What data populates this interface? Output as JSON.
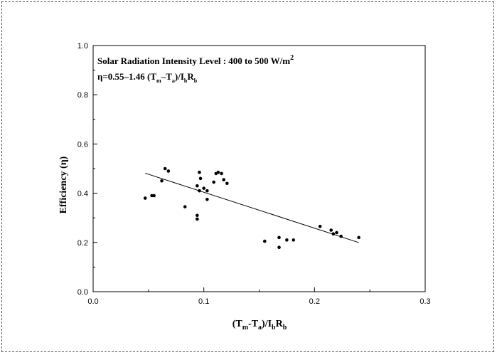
{
  "chart_data": {
    "type": "scatter",
    "title": "",
    "x_range": [
      0.0,
      0.3
    ],
    "y_range": [
      0.0,
      1.0
    ],
    "x_ticks": [
      "0.0",
      "0.1",
      "0.2",
      "0.3"
    ],
    "y_ticks": [
      "0.0",
      "0.2",
      "0.4",
      "0.6",
      "0.8",
      "1.0"
    ],
    "x_tick_values": [
      0.0,
      0.1,
      0.2,
      0.3
    ],
    "y_tick_values": [
      0.0,
      0.2,
      0.4,
      0.6,
      0.8,
      1.0
    ],
    "xlabel": {
      "base": "(T",
      "sub1": "m",
      "mid1": "-T",
      "sub2": "a",
      "mid2": ")/I",
      "sub3": "b",
      "mid3": "R",
      "sub4": "b"
    },
    "ylabel": "Efficiency (η)",
    "annotation": {
      "line1": "Solar Radiation Intensity Level  : 400 to 500 W/m",
      "line1_sup": "2",
      "line2_eq": "η=0.55–1.46 (T",
      "line2_sub1": "m",
      "line2_mid1": "–T",
      "line2_sub2": "a",
      "line2_mid2": ")/I",
      "line2_sub3": "b",
      "line2_mid3": "R",
      "line2_sub4": "b"
    },
    "grid": false,
    "points": [
      {
        "x": 0.047,
        "y": 0.38
      },
      {
        "x": 0.053,
        "y": 0.39
      },
      {
        "x": 0.055,
        "y": 0.39
      },
      {
        "x": 0.062,
        "y": 0.45
      },
      {
        "x": 0.065,
        "y": 0.5
      },
      {
        "x": 0.068,
        "y": 0.49
      },
      {
        "x": 0.083,
        "y": 0.345
      },
      {
        "x": 0.094,
        "y": 0.31
      },
      {
        "x": 0.094,
        "y": 0.295
      },
      {
        "x": 0.094,
        "y": 0.43
      },
      {
        "x": 0.096,
        "y": 0.485
      },
      {
        "x": 0.097,
        "y": 0.46
      },
      {
        "x": 0.096,
        "y": 0.41
      },
      {
        "x": 0.1,
        "y": 0.42
      },
      {
        "x": 0.103,
        "y": 0.41
      },
      {
        "x": 0.103,
        "y": 0.375
      },
      {
        "x": 0.109,
        "y": 0.445
      },
      {
        "x": 0.111,
        "y": 0.48
      },
      {
        "x": 0.113,
        "y": 0.485
      },
      {
        "x": 0.116,
        "y": 0.48
      },
      {
        "x": 0.118,
        "y": 0.455
      },
      {
        "x": 0.121,
        "y": 0.44
      },
      {
        "x": 0.155,
        "y": 0.205
      },
      {
        "x": 0.168,
        "y": 0.22
      },
      {
        "x": 0.168,
        "y": 0.18
      },
      {
        "x": 0.175,
        "y": 0.21
      },
      {
        "x": 0.181,
        "y": 0.21
      },
      {
        "x": 0.205,
        "y": 0.265
      },
      {
        "x": 0.215,
        "y": 0.25
      },
      {
        "x": 0.217,
        "y": 0.235
      },
      {
        "x": 0.22,
        "y": 0.24
      },
      {
        "x": 0.224,
        "y": 0.225
      },
      {
        "x": 0.24,
        "y": 0.22
      }
    ],
    "fit_line": {
      "slope": -1.46,
      "intercept": 0.55,
      "x_start": 0.047,
      "x_end": 0.24
    },
    "colors": {
      "points": "#000000",
      "line": "#000000",
      "axis": "#000000"
    }
  }
}
